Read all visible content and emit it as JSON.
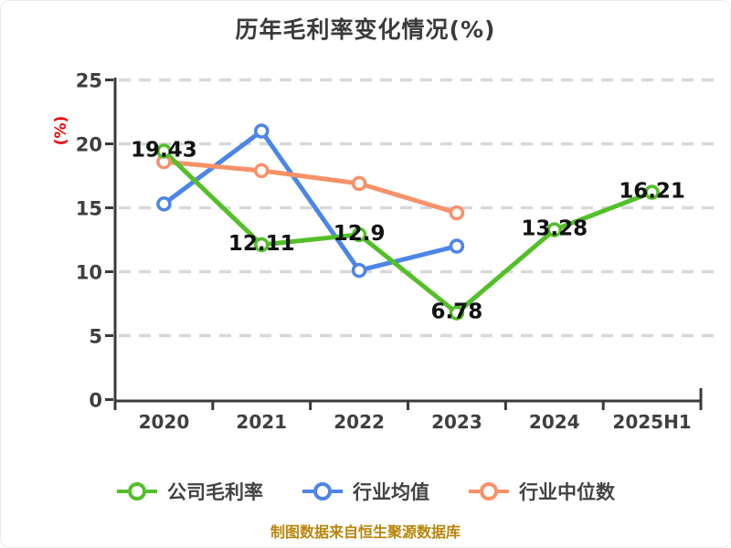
{
  "chart_data": {
    "type": "line",
    "title": "历年毛利率变化情况(%)",
    "ylabel": "(%)",
    "categories": [
      "2020",
      "2021",
      "2022",
      "2023",
      "2024",
      "2025H1"
    ],
    "series": [
      {
        "key": "company-gross-margin",
        "name": "公司毛利率",
        "color": "#53bf29",
        "values": [
          19.43,
          12.11,
          12.9,
          6.78,
          13.28,
          16.21
        ],
        "point_labels": [
          "19.43",
          "12.11",
          "12.9",
          "6.78",
          "13.28",
          "16.21"
        ]
      },
      {
        "key": "industry-average",
        "name": "行业均值",
        "color": "#4c85e8",
        "values": [
          15.3,
          21.0,
          10.1,
          12.0,
          null,
          null
        ],
        "point_labels": []
      },
      {
        "key": "industry-median",
        "name": "行业中位数",
        "color": "#f79168",
        "values": [
          18.6,
          17.9,
          16.9,
          14.6,
          null,
          null
        ],
        "point_labels": []
      }
    ],
    "ylim": [
      0,
      25
    ],
    "yticks": [
      0,
      5,
      10,
      15,
      20,
      25
    ],
    "grid": "horizontal-dashed",
    "legend_position": "bottom"
  },
  "footer": "制图数据来自恒生聚源数据库",
  "colors": {
    "axis": "#3a3a3a",
    "grid": "#d8d8d8",
    "tick_text": "#3f3f3f",
    "title_text": "#3a3a3a",
    "ylabel_text": "#f50000",
    "data_label": "#111111",
    "footer_text": "#b8860b",
    "marker_fill": "#ffffff"
  }
}
